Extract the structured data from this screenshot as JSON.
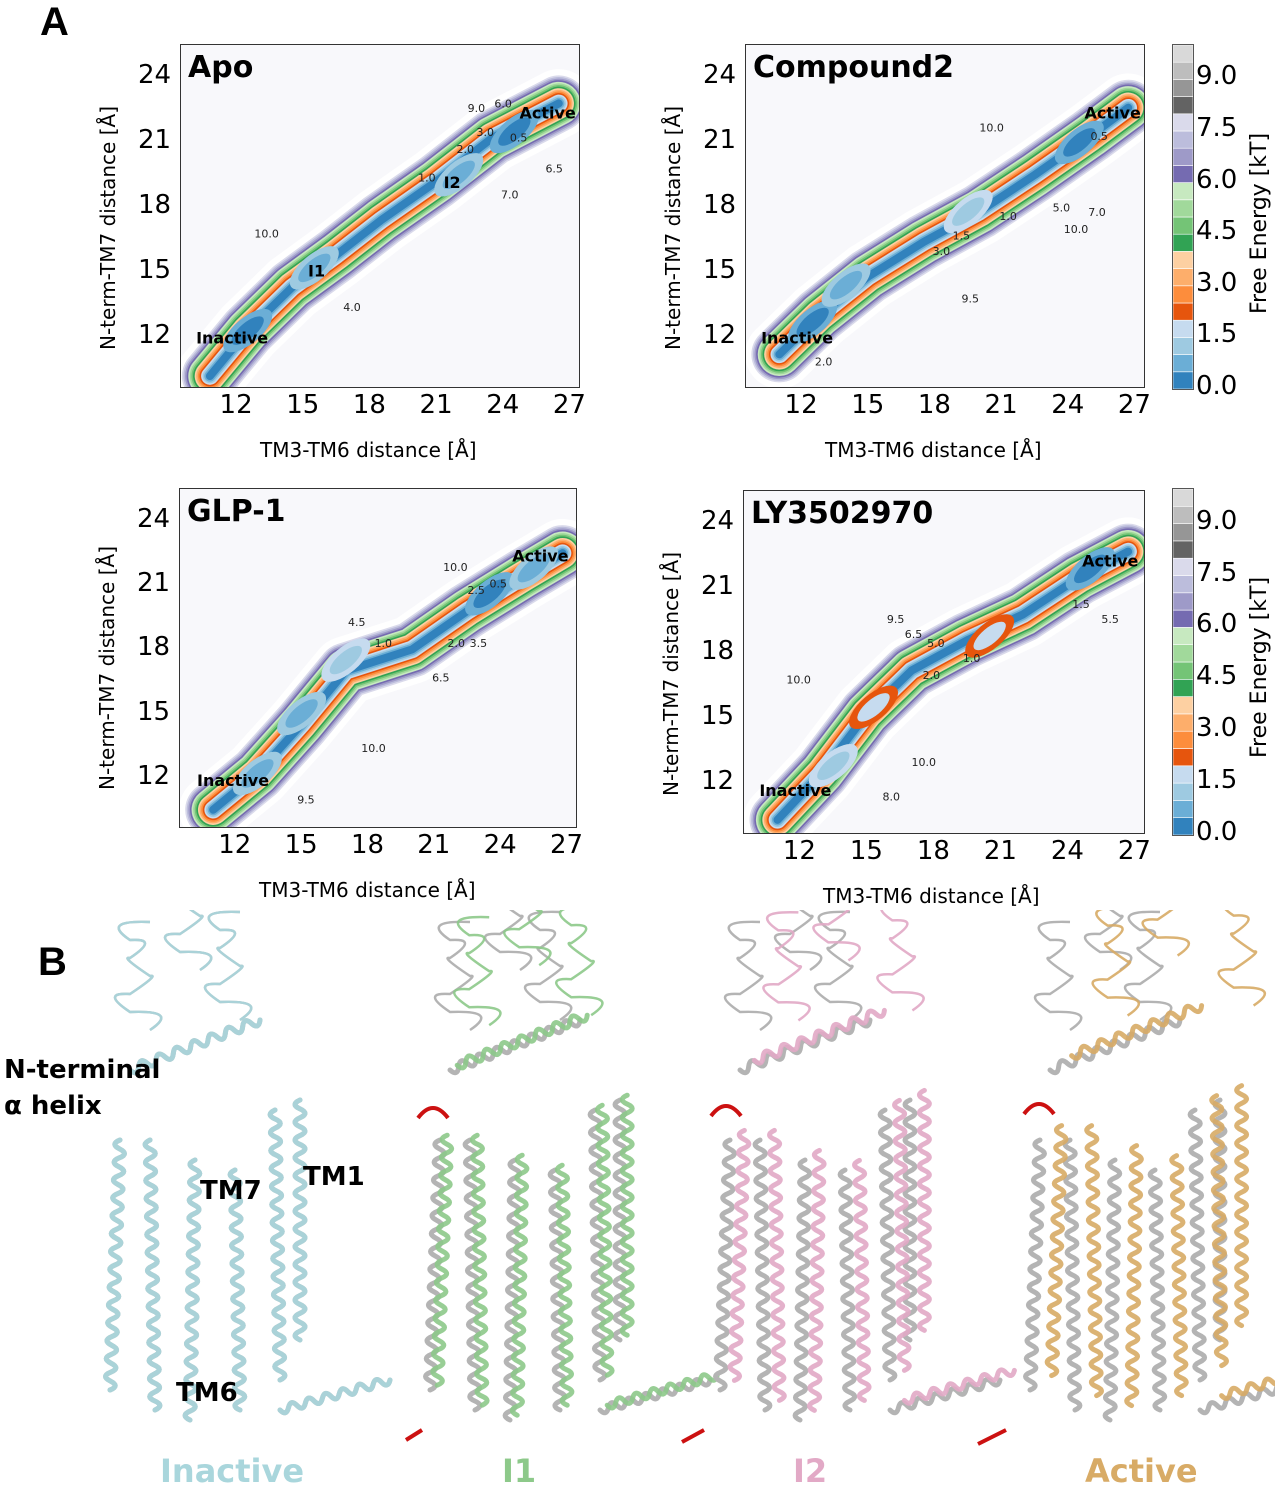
{
  "figure": {
    "panel_a_label": "A",
    "panel_b_label": "B"
  },
  "colors": {
    "levels": [
      "#3182bd",
      "#6baed6",
      "#9ecae1",
      "#c6dbef",
      "#e6550d",
      "#fd8d3c",
      "#fdae6b",
      "#fdd0a2",
      "#31a354",
      "#74c476",
      "#a1d99b",
      "#c7e9c0",
      "#756bb1",
      "#9e9ac8",
      "#bcbddc",
      "#dadaeb",
      "#636363",
      "#969696",
      "#bdbdbd",
      "#d9d9d9"
    ]
  },
  "colorbar": {
    "label": "Free Energy [kT]",
    "ticks": [
      "0.0",
      "1.5",
      "3.0",
      "4.5",
      "6.0",
      "7.5",
      "9.0"
    ],
    "range": [
      0,
      10
    ],
    "step": 0.5
  },
  "chart_data": [
    {
      "type": "heatmap",
      "title": "Apo",
      "xlabel": "TM3-TM6 distance  [Å]",
      "ylabel": "N-term-TM7 distance [Å]",
      "xlim": [
        9.5,
        27.5
      ],
      "ylim": [
        9.6,
        25.5
      ],
      "xticks": [
        "12",
        "15",
        "18",
        "21",
        "24",
        "27"
      ],
      "yticks": [
        "12",
        "15",
        "18",
        "21",
        "24"
      ],
      "path": [
        [
          10.8,
          10.2
        ],
        [
          12.5,
          12.3
        ],
        [
          14.5,
          14.3
        ],
        [
          16.5,
          15.8
        ],
        [
          18.5,
          17.4
        ],
        [
          21,
          19.2
        ],
        [
          23.5,
          21.2
        ],
        [
          26.5,
          22.8
        ]
      ],
      "minima": [
        [
          12.5,
          12.3,
          0.0
        ],
        [
          15.5,
          15.2,
          0.5
        ],
        [
          22,
          19.5,
          0.5
        ],
        [
          24.5,
          21.5,
          0.0
        ]
      ],
      "states": [
        {
          "name": "Inactive",
          "x": 11.8,
          "y": 11.7
        },
        {
          "name": "I1",
          "x": 15.6,
          "y": 14.8
        },
        {
          "name": "I2",
          "x": 21.7,
          "y": 18.9
        },
        {
          "name": "Active",
          "x": 26,
          "y": 22.1
        }
      ],
      "contour_labels": [
        {
          "t": "0.5",
          "x": 24.3,
          "y": 21.6
        },
        {
          "t": "1.0",
          "x": 20.8,
          "y": 19.2
        },
        {
          "t": "2.0",
          "x": 21.9,
          "y": 20.5
        },
        {
          "t": "3.0",
          "x": 22.8,
          "y": 21.3
        },
        {
          "t": "6.0",
          "x": 23.6,
          "y": 22.6
        },
        {
          "t": "9.0",
          "x": 22.4,
          "y": 22.4
        },
        {
          "t": "10.0",
          "x": 12.8,
          "y": 16.6
        },
        {
          "t": "4.0",
          "x": 16.8,
          "y": 13.2
        },
        {
          "t": "7.0",
          "x": 23.9,
          "y": 18.4
        },
        {
          "t": "6.5",
          "x": 25.9,
          "y": 19.6
        }
      ]
    },
    {
      "type": "heatmap",
      "title": "Compound2",
      "xlabel": "TM3-TM6 distance [Å]",
      "ylabel": "N-term-TM7 distance [Å]",
      "xlim": [
        9.5,
        27.5
      ],
      "ylim": [
        9.6,
        25.5
      ],
      "xticks": [
        "12",
        "15",
        "18",
        "21",
        "24",
        "27"
      ],
      "yticks": [
        "12",
        "15",
        "18",
        "21",
        "24"
      ],
      "path": [
        [
          11,
          11.2
        ],
        [
          12.8,
          13
        ],
        [
          15,
          14.8
        ],
        [
          17.5,
          16.4
        ],
        [
          20,
          17.8
        ],
        [
          22.5,
          19.5
        ],
        [
          25,
          21.3
        ],
        [
          26.7,
          22.6
        ]
      ],
      "minima": [
        [
          12.5,
          12.7,
          0.0
        ],
        [
          14,
          14.4,
          0.5
        ],
        [
          19.5,
          17.8,
          1.0
        ],
        [
          24.5,
          21,
          0.0
        ]
      ],
      "states": [
        {
          "name": "Inactive",
          "x": 11.8,
          "y": 11.7
        },
        {
          "name": "Active",
          "x": 26,
          "y": 22.1
        }
      ],
      "contour_labels": [
        {
          "t": "0.5",
          "x": 25,
          "y": 21.1
        },
        {
          "t": "1.0",
          "x": 20.9,
          "y": 17.4
        },
        {
          "t": "1.5",
          "x": 18.8,
          "y": 16.5
        },
        {
          "t": "3.0",
          "x": 17.9,
          "y": 15.8
        },
        {
          "t": "2.0",
          "x": 12.6,
          "y": 11.8
        },
        {
          "t": "5.0",
          "x": 23.3,
          "y": 17.8
        },
        {
          "t": "7.0",
          "x": 24.9,
          "y": 17.6
        },
        {
          "t": "10.0",
          "x": 23.8,
          "y": 16.8
        },
        {
          "t": "10.0",
          "x": 20,
          "y": 21.5
        },
        {
          "t": "9.5",
          "x": 19.2,
          "y": 13.6
        }
      ]
    },
    {
      "type": "heatmap",
      "title": "GLP-1",
      "xlabel": "TM3-TM6 distance  [Å]",
      "ylabel": "N-term-TM7 distance [Å]",
      "xlim": [
        9.5,
        27.5
      ],
      "ylim": [
        9.6,
        25.5
      ],
      "xticks": [
        "12",
        "15",
        "18",
        "21",
        "24",
        "27"
      ],
      "yticks": [
        "12",
        "15",
        "18",
        "21",
        "24"
      ],
      "path": [
        [
          11,
          10.5
        ],
        [
          13,
          12.2
        ],
        [
          15,
          14.5
        ],
        [
          17,
          17
        ],
        [
          20,
          18
        ],
        [
          22.5,
          19.8
        ],
        [
          25,
          21.4
        ],
        [
          26.8,
          22.5
        ]
      ],
      "minima": [
        [
          13,
          12.2,
          0.5
        ],
        [
          15,
          15,
          0.5
        ],
        [
          17,
          17.5,
          1.0
        ],
        [
          23.5,
          20.6,
          0.0
        ],
        [
          25.5,
          21.8,
          0.5
        ]
      ],
      "states": [
        {
          "name": "Inactive",
          "x": 11.9,
          "y": 11.6
        },
        {
          "name": "Active",
          "x": 25.8,
          "y": 22.1
        }
      ],
      "contour_labels": [
        {
          "t": "0.5",
          "x": 23.5,
          "y": 20.9
        },
        {
          "t": "1.0",
          "x": 18.3,
          "y": 18.1
        },
        {
          "t": "2.0",
          "x": 21.6,
          "y": 18.1
        },
        {
          "t": "3.5",
          "x": 22.6,
          "y": 18.1
        },
        {
          "t": "4.5",
          "x": 17.1,
          "y": 19.1
        },
        {
          "t": "2.5",
          "x": 22.5,
          "y": 20.6
        },
        {
          "t": "10.0",
          "x": 21.4,
          "y": 21.1
        },
        {
          "t": "6.5",
          "x": 20.9,
          "y": 16.5
        },
        {
          "t": "9.5",
          "x": 14.8,
          "y": 10.8
        },
        {
          "t": "10.0",
          "x": 17.7,
          "y": 13.2
        }
      ]
    },
    {
      "type": "heatmap",
      "title": "LY3502970",
      "xlabel": "TM3-TM6 distance [Å]",
      "ylabel": "N-term-TM7 distance [Å]",
      "xlim": [
        9.5,
        27.5
      ],
      "ylim": [
        9.6,
        25.5
      ],
      "xticks": [
        "12",
        "15",
        "18",
        "21",
        "24",
        "27"
      ],
      "yticks": [
        "12",
        "15",
        "18",
        "21",
        "24"
      ],
      "path": [
        [
          11,
          10.3
        ],
        [
          13,
          12.5
        ],
        [
          15,
          15.2
        ],
        [
          17,
          17.2
        ],
        [
          19.5,
          18.6
        ],
        [
          22,
          19.8
        ],
        [
          24.5,
          21.5
        ],
        [
          26.7,
          22.7
        ]
      ],
      "minima": [
        [
          13.5,
          12.8,
          1.0
        ],
        [
          15.3,
          15.5,
          1.5
        ],
        [
          20.5,
          18.8,
          1.5
        ],
        [
          25,
          21.9,
          0.0
        ]
      ],
      "states": [
        {
          "name": "Inactive",
          "x": 11.8,
          "y": 11.4
        },
        {
          "name": "Active",
          "x": 25.9,
          "y": 22
        }
      ],
      "contour_labels": [
        {
          "t": "1.0",
          "x": 19.3,
          "y": 17.6
        },
        {
          "t": "1.5",
          "x": 24.2,
          "y": 20.1
        },
        {
          "t": "2.0",
          "x": 17.5,
          "y": 16.8
        },
        {
          "t": "5.0",
          "x": 17.7,
          "y": 18.3
        },
        {
          "t": "5.5",
          "x": 25.5,
          "y": 19.4
        },
        {
          "t": "6.5",
          "x": 16.7,
          "y": 18.7
        },
        {
          "t": "9.5",
          "x": 15.9,
          "y": 19.4
        },
        {
          "t": "10.0",
          "x": 17,
          "y": 12.8
        },
        {
          "t": "10.0",
          "x": 11.4,
          "y": 16.6
        },
        {
          "t": "8.0",
          "x": 15.7,
          "y": 11.2
        }
      ]
    }
  ],
  "structures": {
    "annotations": {
      "nterm": "N-terminal\nα helix",
      "tm7": "TM7",
      "tm1": "TM1",
      "tm6": "TM6"
    },
    "states": [
      {
        "label": "Inactive",
        "color": "#a9d6dc"
      },
      {
        "label": "I1",
        "color": "#8dc98a"
      },
      {
        "label": "I2",
        "color": "#e2a9c6"
      },
      {
        "label": "Active",
        "color": "#d8ab66"
      }
    ],
    "reference_color": "#b4b4b4",
    "arrow_color": "#cc1111"
  }
}
